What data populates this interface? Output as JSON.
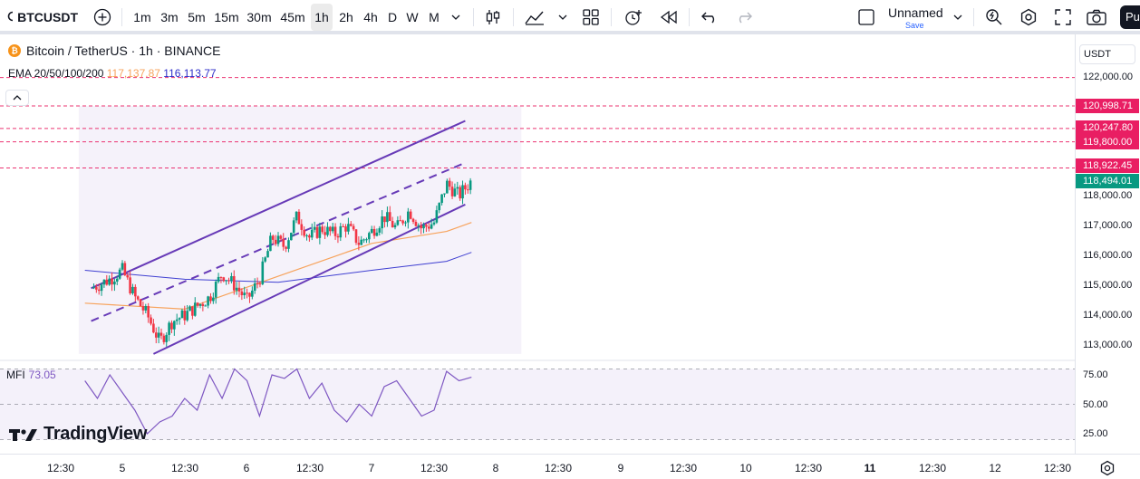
{
  "toolbar": {
    "symbol": "BTCUSDT",
    "intervals": [
      "1m",
      "3m",
      "5m",
      "15m",
      "30m",
      "45m",
      "1h",
      "2h",
      "4h",
      "D",
      "W",
      "M"
    ],
    "active_interval": "1h",
    "layout_name": "Unnamed",
    "layout_save": "Save",
    "publish_label": "Pu"
  },
  "legend": {
    "title": "Bitcoin / TetherUS · 1h · BINANCE",
    "coin_glyph": "₿",
    "ema_label": "EMA 20/50/100/200",
    "ema_values_1": "117,137.87",
    "ema_values_2": "116,113.77"
  },
  "mfi": {
    "label": "MFI",
    "value": "73.05"
  },
  "logo": "TradingView",
  "price_axis": {
    "currency": "USDT",
    "ticks": [
      "122,000.00",
      "118,000.00",
      "117,000.00",
      "116,000.00",
      "115,000.00",
      "114,000.00",
      "113,000.00"
    ],
    "tags": [
      {
        "text": "120,998.71",
        "color": "#e91e63"
      },
      {
        "text": "120,247.80",
        "color": "#e91e63"
      },
      {
        "text": "119,800.00",
        "color": "#e91e63"
      },
      {
        "text": "118,922.45",
        "color": "#e91e63"
      },
      {
        "text": "118,494.01",
        "color": "#089981"
      }
    ],
    "mfi_ticks": [
      "75.00",
      "50.00",
      "25.00"
    ]
  },
  "time_axis": [
    "12:30",
    "5",
    "12:30",
    "6",
    "12:30",
    "7",
    "12:30",
    "8",
    "12:30",
    "9",
    "12:30",
    "10",
    "12:30",
    "11",
    "12:30",
    "12",
    "12:30"
  ],
  "chart_data": {
    "type": "candlestick",
    "symbol": "BTCUSDT",
    "price_range": [
      112700,
      122600
    ],
    "last_price": 118494.01,
    "horizontal_levels": [
      120998.71,
      120247.8,
      119800.0,
      118922.45
    ],
    "channel_upper": [
      [
        4.5,
        114900
      ],
      [
        10.5,
        120500
      ]
    ],
    "channel_lower": [
      [
        5.5,
        112700
      ],
      [
        10.5,
        117700
      ]
    ],
    "close_path": [
      [
        4.5,
        114900
      ],
      [
        4.8,
        115200
      ],
      [
        5.0,
        115500
      ],
      [
        5.2,
        114600
      ],
      [
        5.4,
        114000
      ],
      [
        5.6,
        113100
      ],
      [
        5.8,
        113800
      ],
      [
        6.0,
        114000
      ],
      [
        6.2,
        114300
      ],
      [
        6.4,
        114600
      ],
      [
        6.6,
        115400
      ],
      [
        6.8,
        115000
      ],
      [
        7.0,
        114500
      ],
      [
        7.2,
        115200
      ],
      [
        7.4,
        116600
      ],
      [
        7.6,
        116300
      ],
      [
        7.8,
        117300
      ],
      [
        8.0,
        116600
      ],
      [
        8.2,
        116900
      ],
      [
        8.4,
        116700
      ],
      [
        8.6,
        117000
      ],
      [
        8.8,
        116400
      ],
      [
        9.0,
        116800
      ],
      [
        9.2,
        117300
      ],
      [
        9.4,
        116900
      ],
      [
        9.6,
        117500
      ],
      [
        9.8,
        116900
      ],
      [
        10.0,
        117100
      ],
      [
        10.2,
        118400
      ],
      [
        10.4,
        118000
      ],
      [
        10.6,
        118500
      ]
    ],
    "ema_fast": [
      [
        4.4,
        114400
      ],
      [
        6.0,
        114200
      ],
      [
        7.5,
        115300
      ],
      [
        9.0,
        116400
      ],
      [
        10.2,
        116800
      ],
      [
        10.6,
        117100
      ]
    ],
    "ema_slow": [
      [
        4.4,
        115500
      ],
      [
        6.0,
        115200
      ],
      [
        7.5,
        115100
      ],
      [
        9.0,
        115500
      ],
      [
        10.2,
        115800
      ],
      [
        10.6,
        116100
      ]
    ],
    "mfi_range": [
      0,
      100
    ],
    "mfi_levels": [
      80,
      50,
      20
    ],
    "mfi_values": [
      [
        4.4,
        70
      ],
      [
        4.6,
        55
      ],
      [
        4.8,
        75
      ],
      [
        5.0,
        60
      ],
      [
        5.2,
        45
      ],
      [
        5.4,
        25
      ],
      [
        5.6,
        35
      ],
      [
        5.8,
        40
      ],
      [
        6.0,
        55
      ],
      [
        6.2,
        45
      ],
      [
        6.4,
        75
      ],
      [
        6.6,
        55
      ],
      [
        6.8,
        80
      ],
      [
        7.0,
        70
      ],
      [
        7.2,
        40
      ],
      [
        7.4,
        75
      ],
      [
        7.6,
        72
      ],
      [
        7.8,
        80
      ],
      [
        8.0,
        55
      ],
      [
        8.2,
        68
      ],
      [
        8.4,
        45
      ],
      [
        8.6,
        35
      ],
      [
        8.8,
        50
      ],
      [
        9.0,
        40
      ],
      [
        9.2,
        65
      ],
      [
        9.4,
        70
      ],
      [
        9.6,
        55
      ],
      [
        9.8,
        40
      ],
      [
        10.0,
        45
      ],
      [
        10.2,
        78
      ],
      [
        10.4,
        70
      ],
      [
        10.6,
        73
      ]
    ]
  }
}
